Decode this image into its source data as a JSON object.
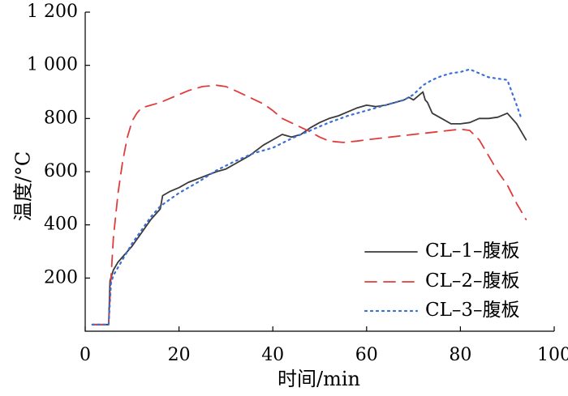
{
  "chart_data": {
    "type": "line",
    "title": "",
    "xlabel": "时间/min",
    "ylabel": "温度/°C",
    "xlim": [
      0,
      100
    ],
    "ylim": [
      0,
      1200
    ],
    "x_ticks": [
      0,
      20,
      40,
      60,
      80,
      100
    ],
    "y_ticks": [
      200,
      400,
      600,
      800,
      1000,
      1200
    ],
    "x_tick_labels": [
      "0",
      "20",
      "40",
      "60",
      "80",
      "100"
    ],
    "y_tick_labels": [
      "200",
      "400",
      "600",
      "800",
      "1 000",
      "1 200"
    ],
    "legend_position": "bottom-right",
    "series": [
      {
        "name": "CL–1–腹板",
        "color": "#3a3a3a",
        "style": "solid",
        "x": [
          1.5,
          5.0,
          5.3,
          6,
          7,
          8,
          10,
          12,
          14,
          16,
          16.5,
          18,
          20,
          22,
          25,
          28,
          30,
          32,
          35,
          38,
          40,
          42,
          44,
          46,
          48,
          50,
          52,
          54,
          56,
          58,
          60,
          62,
          64,
          66,
          68,
          69,
          70,
          71,
          72,
          72.5,
          73,
          74,
          76,
          78,
          80,
          82,
          84,
          86,
          88,
          90,
          91,
          92,
          94
        ],
        "y": [
          25,
          25,
          190,
          230,
          260,
          280,
          320,
          370,
          420,
          460,
          510,
          525,
          540,
          560,
          580,
          600,
          610,
          630,
          660,
          700,
          720,
          740,
          730,
          740,
          765,
          785,
          800,
          810,
          825,
          840,
          850,
          845,
          850,
          860,
          870,
          880,
          870,
          885,
          900,
          870,
          860,
          820,
          800,
          780,
          780,
          785,
          800,
          800,
          805,
          820,
          800,
          780,
          720
        ]
      },
      {
        "name": "CL–2–腹板",
        "color": "#e03c3c",
        "style": "dashed",
        "x": [
          1.5,
          5.0,
          5.5,
          6,
          7,
          8,
          9,
          10,
          11,
          12,
          14,
          16,
          18,
          20,
          22,
          25,
          28,
          30,
          32,
          35,
          38,
          40,
          42,
          45,
          48,
          50,
          52,
          55,
          58,
          60,
          65,
          70,
          75,
          80,
          82,
          84,
          86,
          88,
          90,
          92,
          94
        ],
        "y": [
          25,
          25,
          200,
          350,
          520,
          640,
          730,
          790,
          820,
          840,
          850,
          860,
          875,
          890,
          905,
          920,
          925,
          920,
          905,
          880,
          855,
          830,
          800,
          775,
          750,
          730,
          715,
          710,
          715,
          720,
          730,
          740,
          750,
          760,
          755,
          720,
          660,
          600,
          550,
          480,
          420
        ]
      },
      {
        "name": "CL–3–腹板",
        "color": "#3a6fd8",
        "style": "dotted",
        "x": [
          1.5,
          5.0,
          5.5,
          6,
          7,
          8,
          10,
          12,
          14,
          16,
          18,
          20,
          24,
          28,
          32,
          36,
          40,
          44,
          48,
          52,
          56,
          60,
          64,
          68,
          70,
          72,
          74,
          76,
          78,
          80,
          82,
          84,
          86,
          88,
          90,
          92,
          93
        ],
        "y": [
          25,
          25,
          180,
          210,
          240,
          270,
          330,
          380,
          430,
          470,
          495,
          520,
          560,
          605,
          640,
          670,
          690,
          725,
          755,
          785,
          810,
          830,
          850,
          870,
          890,
          925,
          945,
          960,
          970,
          975,
          985,
          970,
          955,
          950,
          945,
          850,
          800
        ]
      }
    ]
  }
}
